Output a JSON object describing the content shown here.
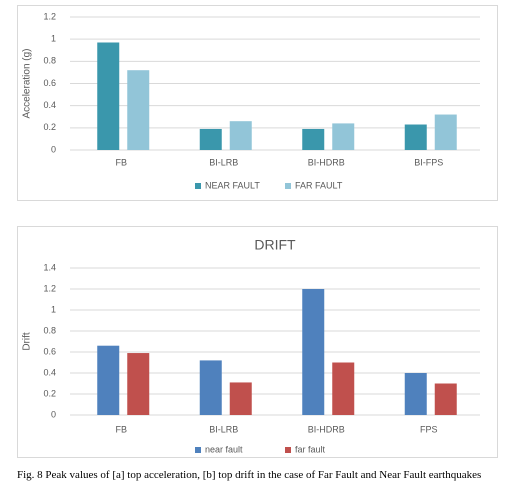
{
  "chart_data": [
    {
      "type": "bar",
      "ylabel": "Acceleration (g)",
      "categories": [
        "FB",
        "BI-LRB",
        "BI-HDRB",
        "BI-FPS"
      ],
      "series": [
        {
          "name": "NEAR FAULT",
          "color": "#3a97ac",
          "values": [
            0.97,
            0.19,
            0.19,
            0.23
          ]
        },
        {
          "name": "FAR FAULT",
          "color": "#92c5d8",
          "values": [
            0.72,
            0.26,
            0.24,
            0.32
          ]
        }
      ],
      "ylim": [
        0,
        1.2
      ],
      "yticks": [
        0,
        0.2,
        0.4,
        0.6,
        0.8,
        1,
        1.2
      ],
      "grid": true
    },
    {
      "type": "bar",
      "title": "DRIFT",
      "ylabel": "Drift",
      "categories": [
        "FB",
        "BI-LRB",
        "BI-HDRB",
        "FPS"
      ],
      "series": [
        {
          "name": "near fault",
          "color": "#4f81bd",
          "values": [
            0.66,
            0.52,
            1.2,
            0.4
          ]
        },
        {
          "name": "far fault",
          "color": "#c0504d",
          "values": [
            0.59,
            0.31,
            0.5,
            0.3
          ]
        }
      ],
      "ylim": [
        0,
        1.4
      ],
      "yticks": [
        0,
        0.2,
        0.4,
        0.6,
        0.8,
        1,
        1.2,
        1.4
      ],
      "grid": true
    }
  ],
  "caption": "Fig. 8 Peak values of [a] top acceleration, [b] top drift in the case of Far Fault and Near Fault earthquakes"
}
